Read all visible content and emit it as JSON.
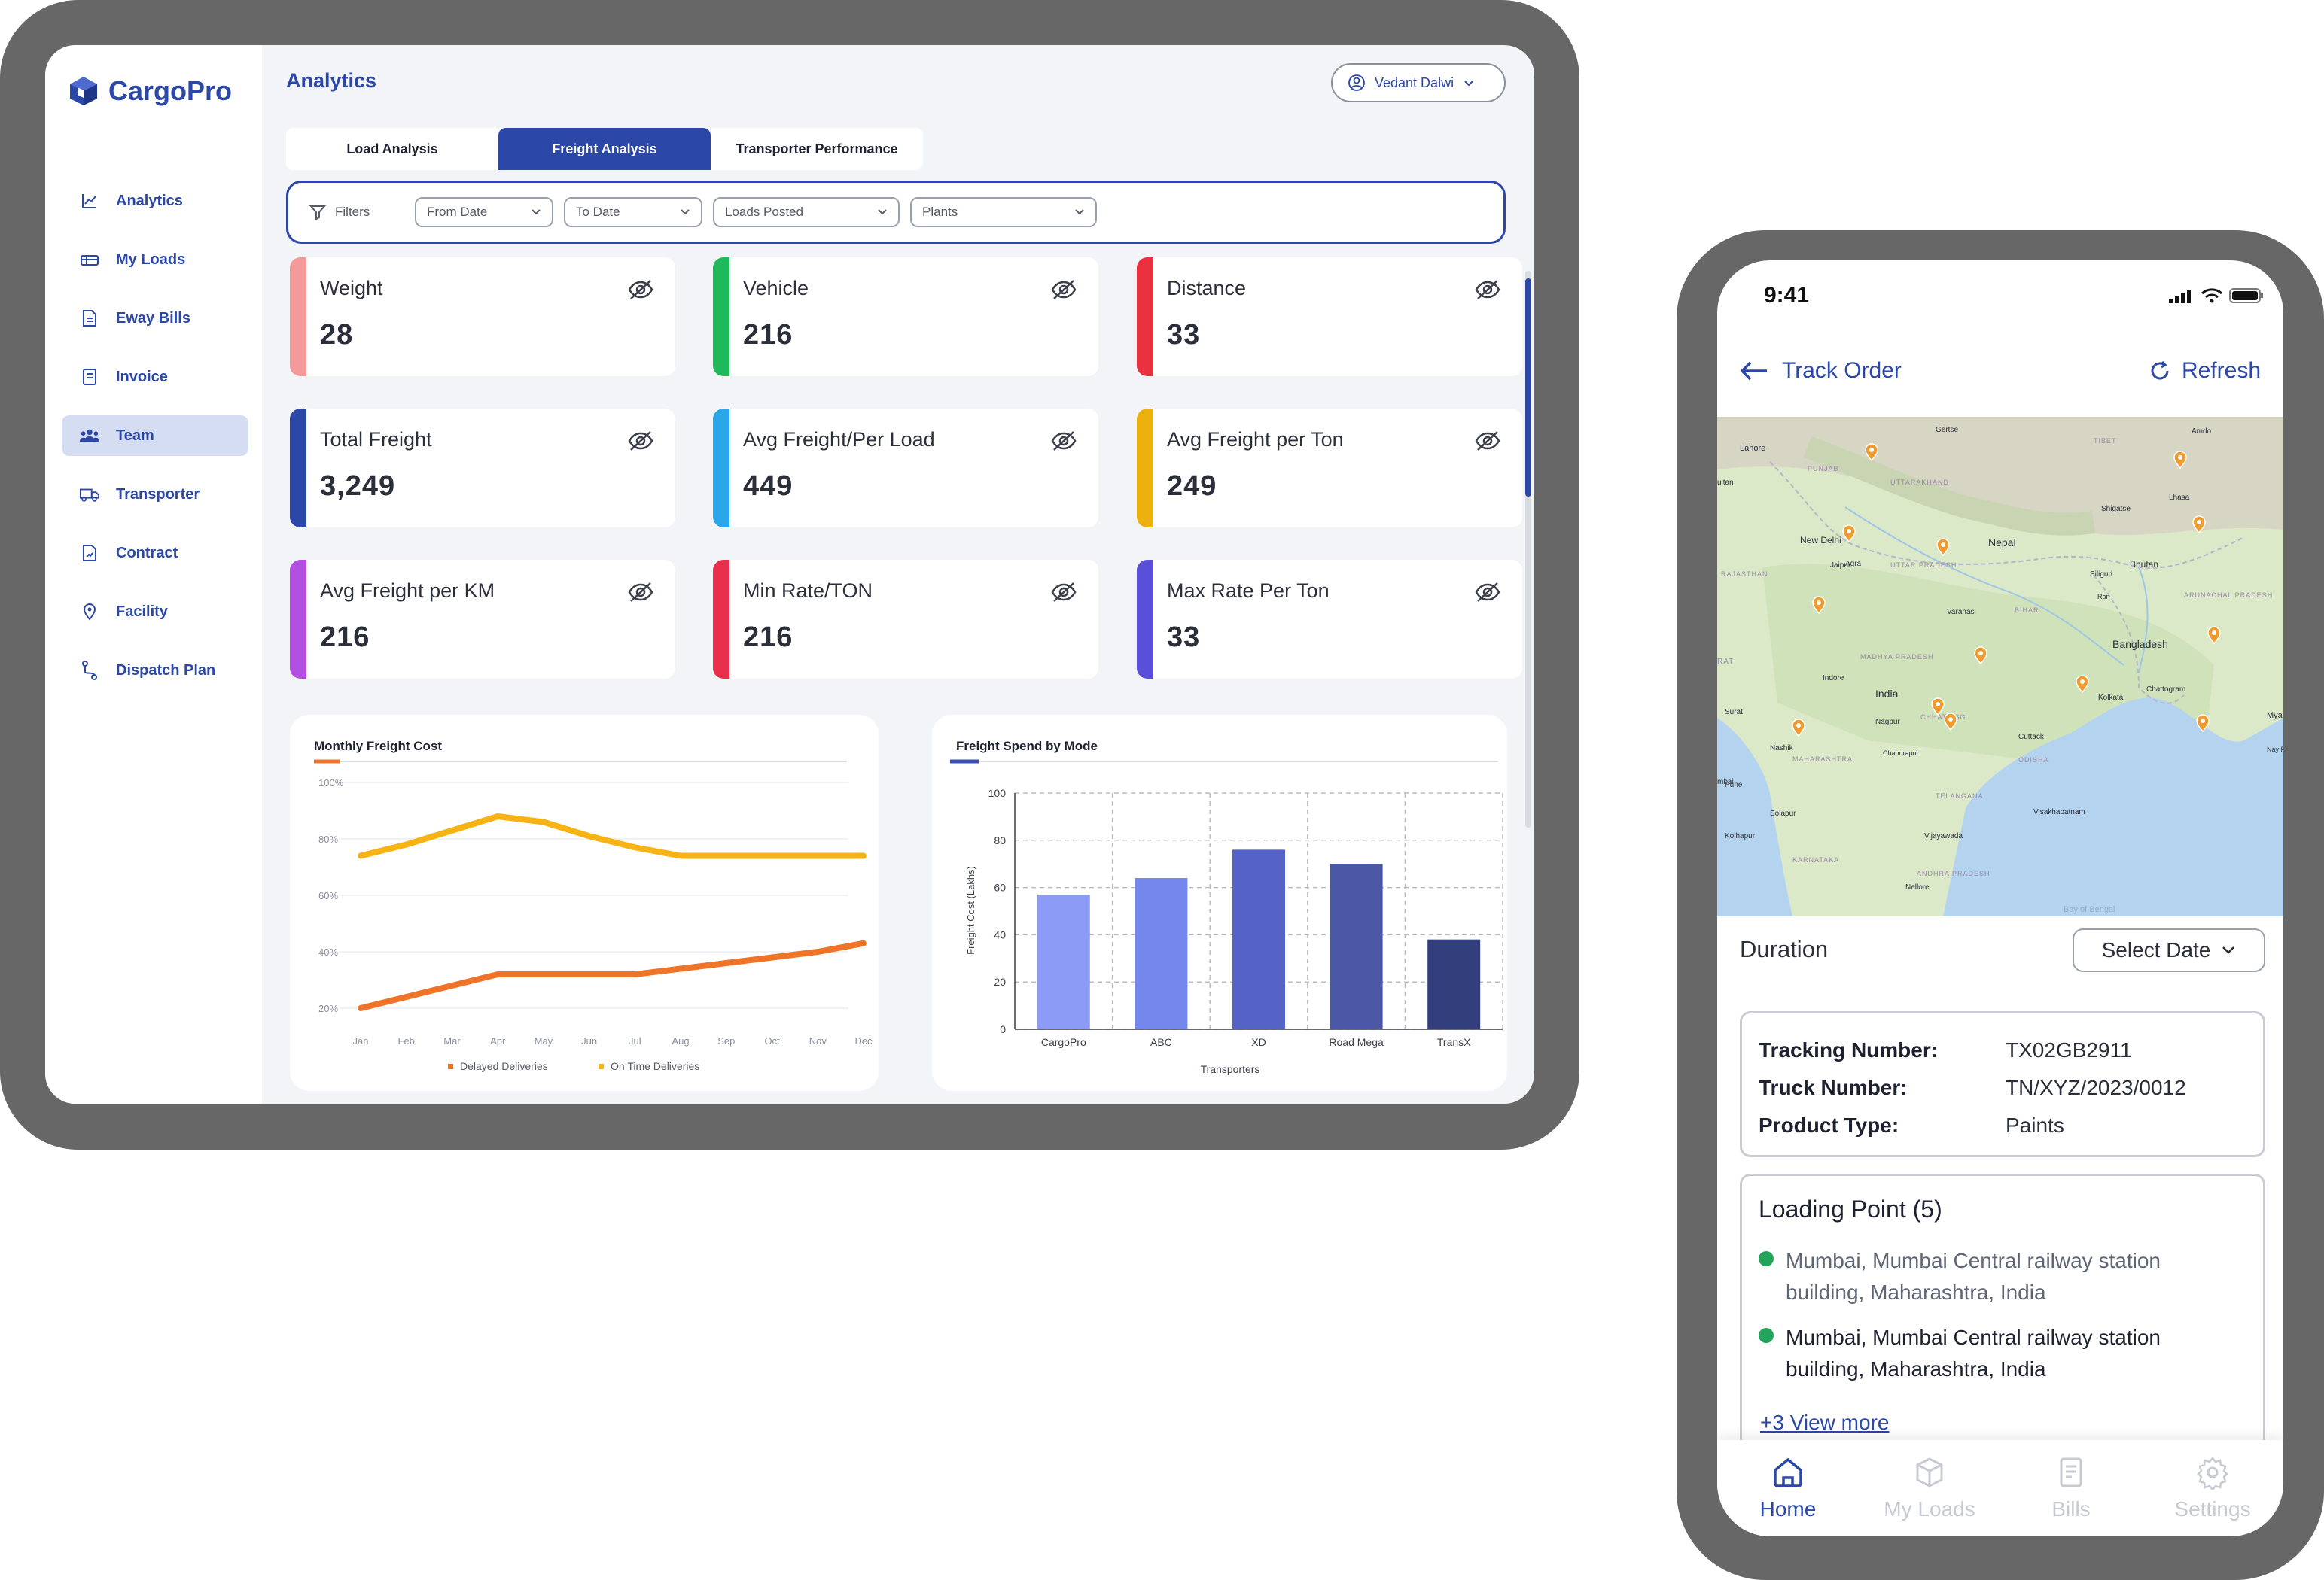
{
  "tablet": {
    "brand": "CargoPro",
    "page_title": "Analytics",
    "user_name": "Vedant Dalwi",
    "sidebar": [
      {
        "label": "Analytics",
        "icon": "chart-line-icon"
      },
      {
        "label": "My Loads",
        "icon": "truck-box-icon"
      },
      {
        "label": "Eway Bills",
        "icon": "document-icon"
      },
      {
        "label": "Invoice",
        "icon": "invoice-icon"
      },
      {
        "label": "Team",
        "icon": "team-icon",
        "active": true
      },
      {
        "label": "Transporter",
        "icon": "truck-icon"
      },
      {
        "label": "Contract",
        "icon": "contract-icon"
      },
      {
        "label": "Facility",
        "icon": "location-pin-icon"
      },
      {
        "label": "Dispatch Plan",
        "icon": "route-icon"
      }
    ],
    "tabs": [
      "Load Analysis",
      "Freight Analysis",
      "Transporter Performance"
    ],
    "active_tab": "Freight Analysis",
    "filters": {
      "label": "Filters",
      "dropdowns": [
        "From Date",
        "To Date",
        "Loads Posted",
        "Plants"
      ]
    },
    "cards": [
      {
        "label": "Weight",
        "value": "28",
        "color": "#f59a9a"
      },
      {
        "label": "Vehicle",
        "value": "216",
        "color": "#1fb85a"
      },
      {
        "label": "Distance",
        "value": "33",
        "color": "#e8303f"
      },
      {
        "label": "Total Freight",
        "value": "3,249",
        "color": "#2b47a8"
      },
      {
        "label": "Avg Freight/Per Load",
        "value": "449",
        "color": "#2aa7e8"
      },
      {
        "label": "Avg Freight per Ton",
        "value": "249",
        "color": "#ecb10f"
      },
      {
        "label": "Avg Freight per KM",
        "value": "216",
        "color": "#b34fe0"
      },
      {
        "label": "Min Rate/TON",
        "value": "216",
        "color": "#e8304d"
      },
      {
        "label": "Max Rate Per Ton",
        "value": "33",
        "color": "#5a4fd8"
      }
    ]
  },
  "chart_data": [
    {
      "type": "line",
      "title": "Monthly Freight Cost",
      "categories": [
        "Jan",
        "Feb",
        "Mar",
        "Apr",
        "May",
        "Jun",
        "Jul",
        "Aug",
        "Sep",
        "Oct",
        "Nov",
        "Dec"
      ],
      "y_ticks": [
        "100%",
        "80%",
        "60%",
        "40%",
        "20%"
      ],
      "ylim": [
        20,
        100
      ],
      "series": [
        {
          "name": "Delayed Deliveries",
          "color": "#f07427",
          "values": [
            20,
            24,
            28,
            32,
            32,
            32,
            32,
            34,
            36,
            38,
            40,
            43
          ]
        },
        {
          "name": "On Time Deliveries",
          "color": "#f7b314",
          "values": [
            74,
            78,
            83,
            88,
            86,
            81,
            77,
            74,
            74,
            74,
            74,
            74
          ]
        }
      ],
      "legend_position": "bottom"
    },
    {
      "type": "bar",
      "title": "Freight Spend by Mode",
      "categories": [
        "CargoPro",
        "ABC",
        "XD",
        "Road Mega",
        "TransX"
      ],
      "values": [
        57,
        64,
        76,
        70,
        38
      ],
      "colors": [
        "#8c9bf5",
        "#7487ec",
        "#5562c7",
        "#4a58a6",
        "#333f7c"
      ],
      "ylabel": "Freight Cost (Lakhs)",
      "xlabel": "Transporters",
      "y_ticks": [
        0,
        20,
        40,
        60,
        80,
        100
      ],
      "ylim": [
        0,
        100
      ],
      "grid": true
    }
  ],
  "phone": {
    "time": "9:41",
    "title": "Track Order",
    "refresh": "Refresh",
    "map_labels": [
      "Lahore",
      "Gertse",
      "Amdo",
      "Shigatse",
      "Lhasa",
      "New Delhi",
      "Nepal",
      "Jaipur",
      "Agra",
      "Bhutan",
      "Siliguri",
      "Varanasi",
      "Bangladesh",
      "India",
      "Indore",
      "Kolkata",
      "Chattogram",
      "Nagpur",
      "Surat",
      "Nashik",
      "Cuttack",
      "Pune",
      "Solapur",
      "Visakhapatnam",
      "Vijayawada",
      "Kolhapur",
      "Nellore",
      "Bay of Bengal",
      "RAJASTHAN",
      "UTTAR PRADESH",
      "MADHYA PRADESH",
      "MAHARASHTRA",
      "TELANGANA",
      "ODISHA",
      "ANDHRA PRADESH",
      "KARNATAKA",
      "BIHAR",
      "Chandrapur",
      "PUNJAB",
      "UTTARAKHAND",
      "TIBET",
      "ARUNACHAL PRADESH",
      "Ran",
      "CHHATTISG",
      "Mya (Bu",
      "Nay Py",
      "ultan",
      "mbai",
      "RAT"
    ],
    "duration_label": "Duration",
    "select_date": "Select Date",
    "tracking": [
      {
        "key": "Tracking Number:",
        "value": "TX02GB2911"
      },
      {
        "key": "Truck  Number:",
        "value": "TN/XYZ/2023/0012"
      },
      {
        "key": "Product Type:",
        "value": "Paints"
      }
    ],
    "loading_title": "Loading Point (5)",
    "loading_points": [
      "Mumbai, Mumbai Central railway station building, Maharashtra, India",
      "Mumbai, Mumbai Central railway  station building, Maharashtra, India"
    ],
    "view_more": "+3 View more",
    "bottom_nav": [
      "Home",
      "My Loads",
      "Bills",
      "Settings"
    ]
  }
}
